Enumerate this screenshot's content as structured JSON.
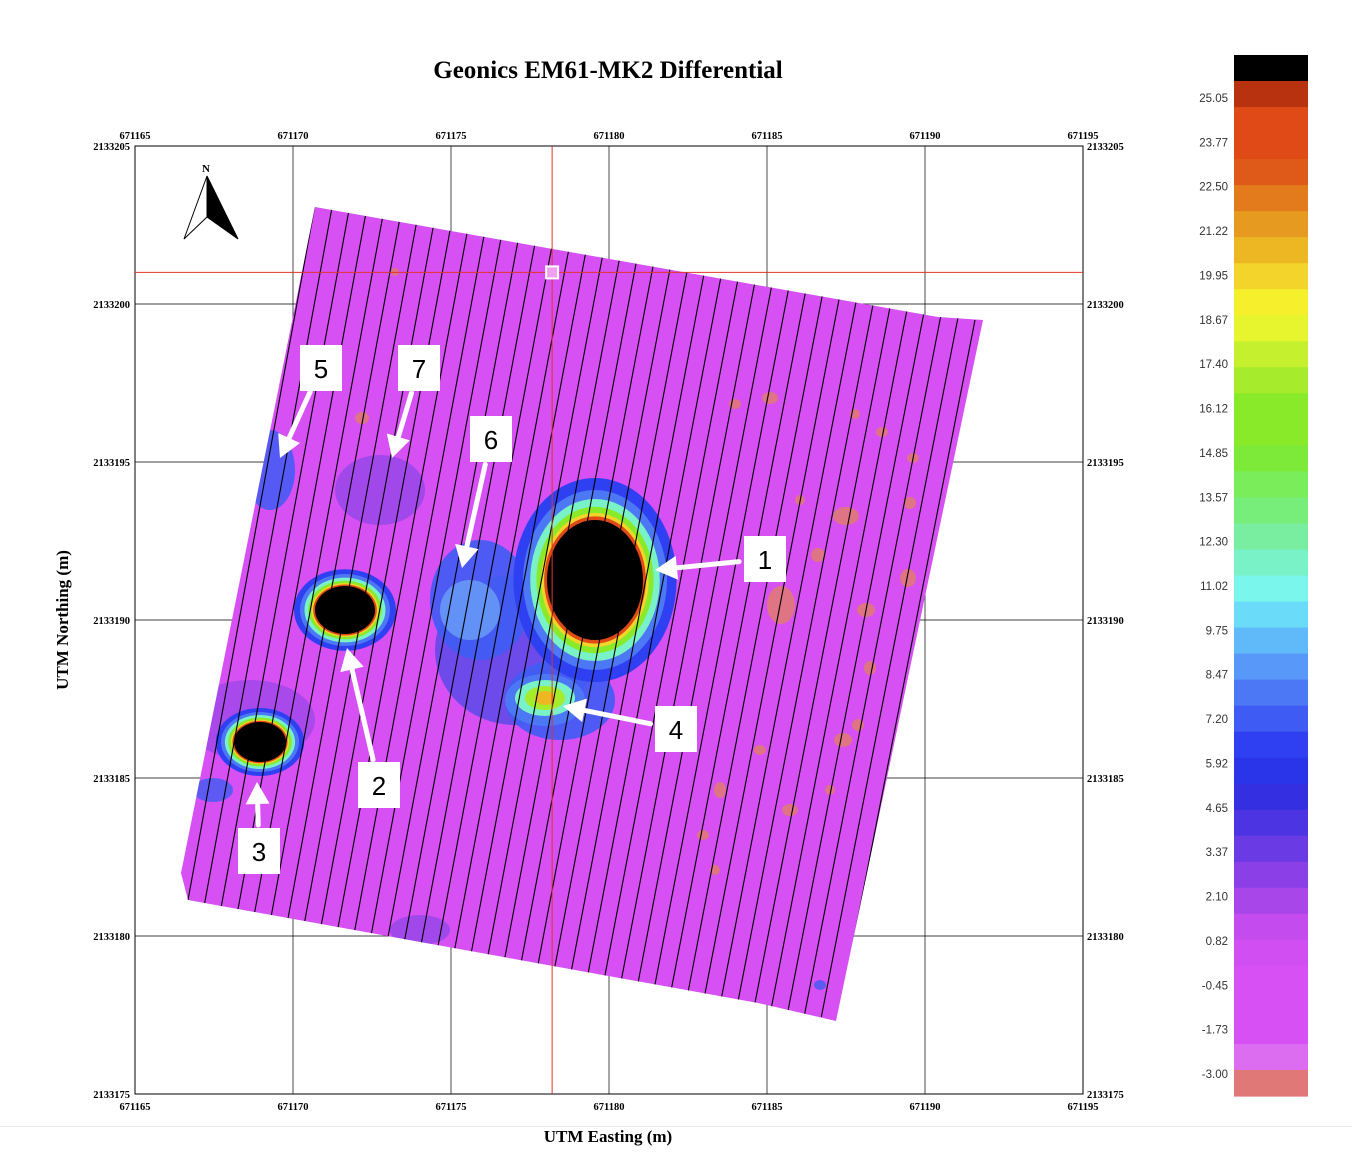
{
  "title": "Geonics EM61-MK2 Differential",
  "x_axis": {
    "label": "UTM Easting (m)",
    "range": [
      671165,
      671195
    ],
    "ticks": [
      "671165",
      "671170",
      "671175",
      "671180",
      "671185",
      "671190",
      "671195"
    ]
  },
  "y_axis": {
    "label": "UTM Northing (m)",
    "range": [
      2133175,
      2133205
    ],
    "ticks": [
      "2133175",
      "2133180",
      "2133185",
      "2133190",
      "2133195",
      "2133200",
      "2133205"
    ]
  },
  "north_arrow": {
    "label": "N",
    "icon": "north-arrow-icon"
  },
  "cursor": {
    "easting": 671178.2,
    "northing": 2133201.0
  },
  "anomalies": [
    {
      "label": "1",
      "easting": 671179.8,
      "northing": 2133191.4
    },
    {
      "label": "2",
      "easting": 671171.6,
      "northing": 2133190.4
    },
    {
      "label": "3",
      "easting": 671168.9,
      "northing": 2133186.2
    },
    {
      "label": "4",
      "easting": 671178.0,
      "northing": 2133187.5
    },
    {
      "label": "5",
      "easting": 671169.7,
      "northing": 2133195.2
    },
    {
      "label": "6",
      "easting": 671175.8,
      "northing": 2133191.7
    },
    {
      "label": "7",
      "easting": 671173.3,
      "northing": 2133195.2
    }
  ],
  "colorbar": {
    "labels": [
      "25.05",
      "23.77",
      "22.50",
      "21.22",
      "19.95",
      "18.67",
      "17.40",
      "16.12",
      "14.85",
      "13.57",
      "12.30",
      "11.02",
      "9.75",
      "8.47",
      "7.20",
      "5.92",
      "4.65",
      "3.37",
      "2.10",
      "0.82",
      "-0.45",
      "-1.73",
      "-3.00"
    ],
    "colors": [
      "#000000",
      "#b83210",
      "#df4a16",
      "#df4a16",
      "#df5a18",
      "#e37a1c",
      "#e79a20",
      "#edb724",
      "#f2d42a",
      "#f6ef2c",
      "#e7f52e",
      "#c5f02e",
      "#a6ec2c",
      "#88ea28",
      "#88ea28",
      "#7dea3a",
      "#7aee5a",
      "#78ee7a",
      "#7aeea0",
      "#78f2c6",
      "#7af6ec",
      "#6adcfa",
      "#60bafa",
      "#5898f8",
      "#4c78f6",
      "#3e5cf4",
      "#2e40f2",
      "#2a34e8",
      "#3430e2",
      "#4c34e2",
      "#6a3ae4",
      "#8a40e6",
      "#a846ea",
      "#c44cee",
      "#d04ef2",
      "#d650f4",
      "#d650f4",
      "#d650f4",
      "#dc6cf0",
      "#e07878"
    ],
    "data_colors": {
      "background": "#d650f4",
      "low": "#e07878",
      "high": "#000000"
    }
  }
}
